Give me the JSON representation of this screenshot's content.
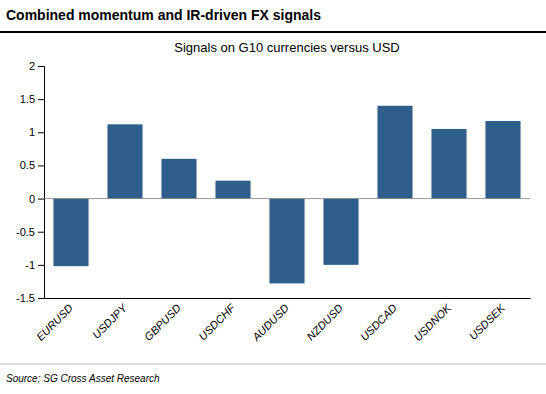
{
  "chart_data": {
    "type": "bar",
    "title": "Combined momentum and IR-driven FX signals",
    "subtitle": "Signals on G10 currencies versus USD",
    "source": "Source: SG Cross Asset Research",
    "categories": [
      "EURUSD",
      "USDJPY",
      "GBPUSD",
      "USDCHF",
      "AUDUSD",
      "NZDUSD",
      "USDCAD",
      "USDNOK",
      "USDSEK"
    ],
    "values": [
      -1.02,
      1.12,
      0.6,
      0.27,
      -1.28,
      -1.0,
      1.4,
      1.05,
      1.17
    ],
    "color": "#2E5F8A",
    "ylim": [
      -1.5,
      2.0
    ],
    "yticks": [
      -1.5,
      -1,
      -0.5,
      0,
      0.5,
      1,
      1.5,
      2
    ],
    "grid": false
  }
}
